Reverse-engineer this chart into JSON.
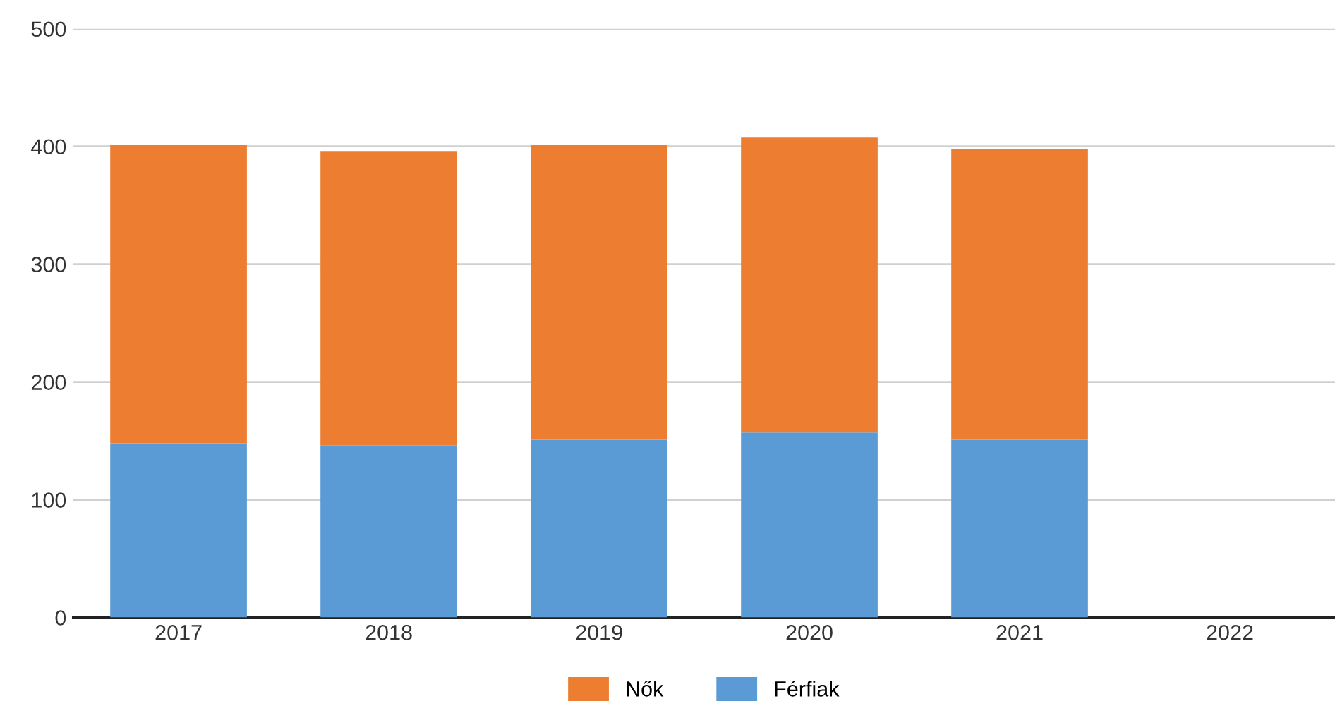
{
  "chart_data": {
    "type": "bar",
    "stacked": true,
    "categories": [
      "2017",
      "2018",
      "2019",
      "2020",
      "2021",
      "2022"
    ],
    "series": [
      {
        "name": "Férfiak",
        "color": "#5b9bd5",
        "values": [
          148,
          146,
          151,
          157,
          151,
          null
        ]
      },
      {
        "name": "Nők",
        "color": "#ed7d31",
        "values": [
          253,
          250,
          250,
          251,
          247,
          null
        ]
      }
    ],
    "ylim": [
      0,
      500
    ],
    "yticks": [
      0,
      100,
      200,
      300,
      400,
      500
    ],
    "grid": "y",
    "legend": "bottom"
  }
}
